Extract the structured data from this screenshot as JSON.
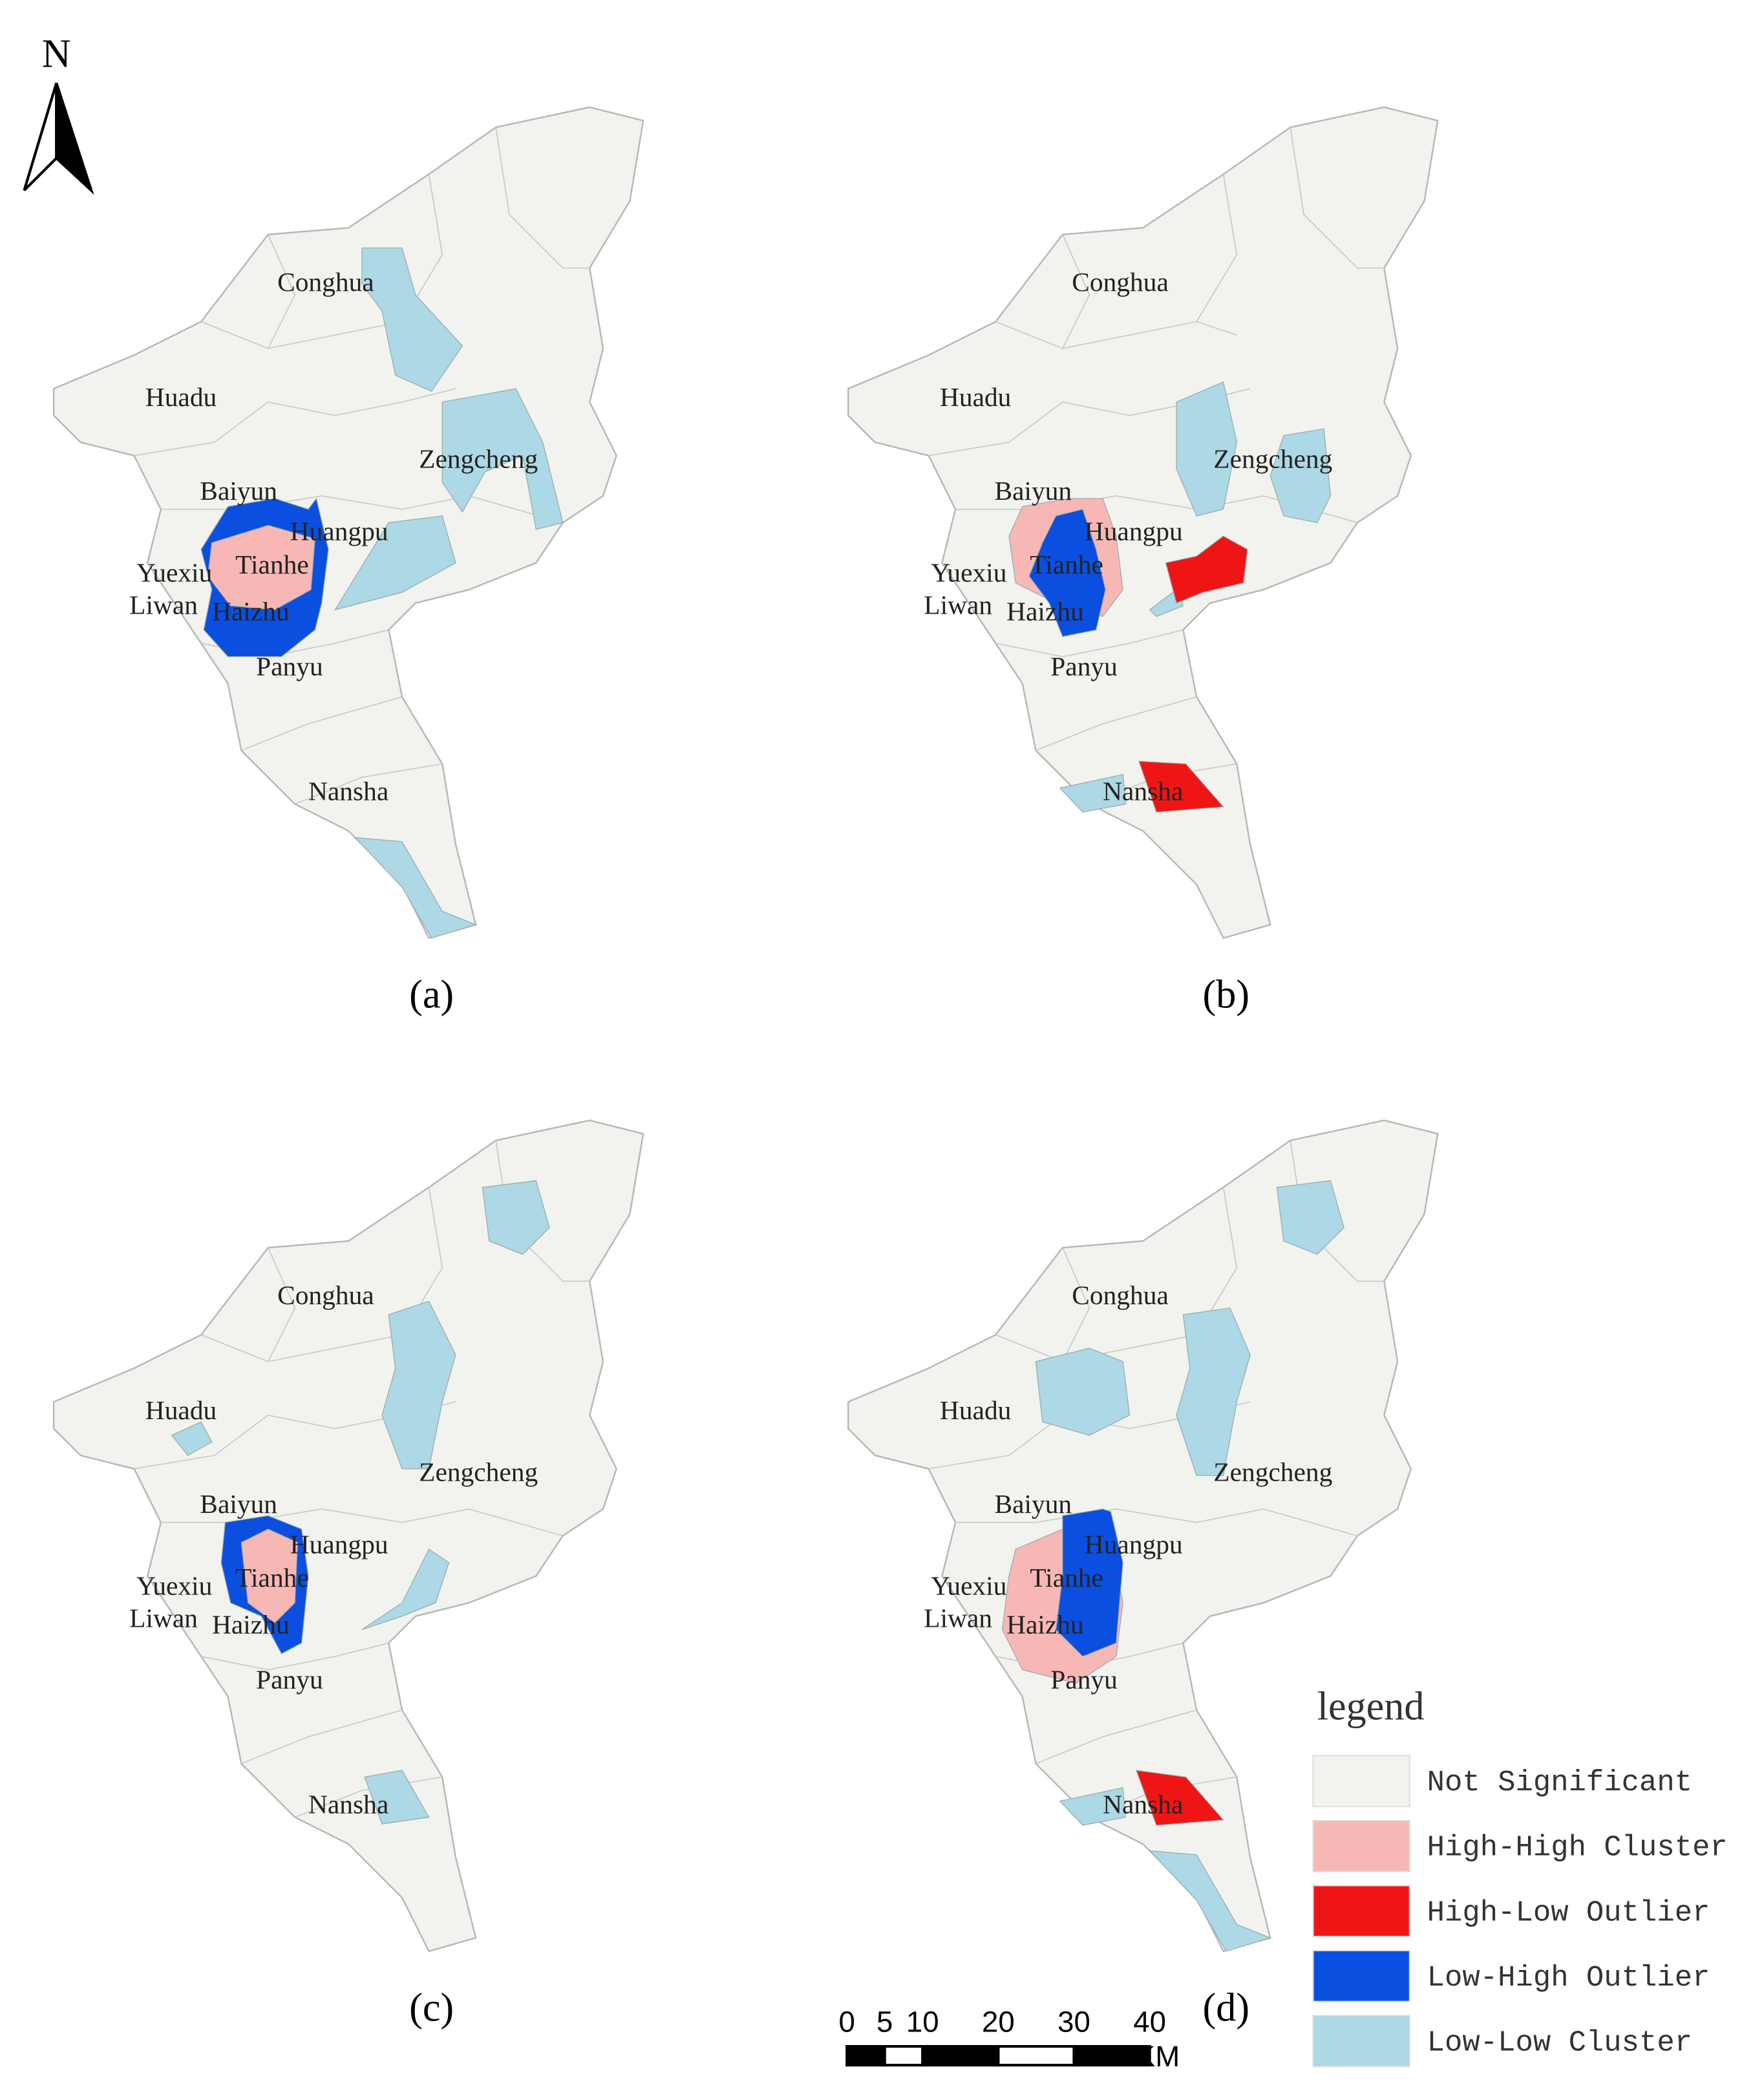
{
  "north": "N",
  "districts": [
    "Conghua",
    "Huadu",
    "Baiyun",
    "Zengcheng",
    "Huangpu",
    "Yuexiu",
    "Tianhe",
    "Liwan",
    "Haizhu",
    "Panyu",
    "Nansha"
  ],
  "panels": [
    "(a)",
    "(b)",
    "(c)",
    "(d)"
  ],
  "legend": {
    "title": "legend",
    "items": [
      {
        "name": "Not Significant",
        "color": "#f2f2ef"
      },
      {
        "name": "High-High Cluster",
        "color": "#f7b8b5"
      },
      {
        "name": "High-Low Outlier",
        "color": "#f01515"
      },
      {
        "name": "Low-High Outlier",
        "color": "#0a4fe0"
      },
      {
        "name": "Low-Low Cluster",
        "color": "#add8e6"
      }
    ]
  },
  "scale_bar": {
    "ticks": [
      0,
      5,
      10,
      20,
      30,
      40
    ],
    "unit": "KM"
  }
}
